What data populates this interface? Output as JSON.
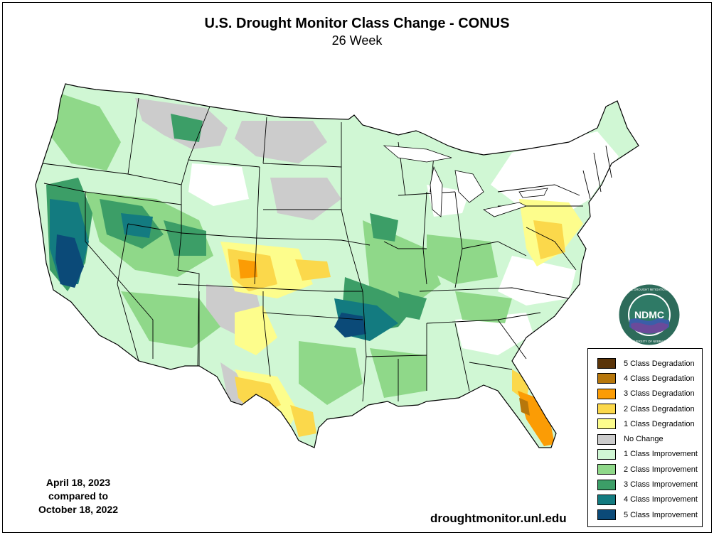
{
  "header": {
    "title": "U.S. Drought Monitor Class Change - CONUS",
    "subtitle": "26 Week"
  },
  "dates": {
    "line1": "April 18, 2023",
    "line2": "compared to",
    "line3": "October 18, 2022"
  },
  "footer": {
    "website": "droughtmonitor.unl.edu"
  },
  "logo": {
    "abbreviation": "NDMC",
    "ring_text_top": "NATIONAL DROUGHT MITIGATION CENTER",
    "ring_text_bottom": "UNIVERSITY OF NEBRASKA"
  },
  "legend": {
    "items": [
      {
        "label": "5 Class Degradation",
        "color": "#5a3408"
      },
      {
        "label": "4 Class Degradation",
        "color": "#b7770b"
      },
      {
        "label": "3 Class Degradation",
        "color": "#fb9c05"
      },
      {
        "label": "2 Class Degradation",
        "color": "#fbd84b"
      },
      {
        "label": "1 Class Degradation",
        "color": "#fdfd8c"
      },
      {
        "label": "No Change",
        "color": "#cccccc"
      },
      {
        "label": "1 Class Improvement",
        "color": "#d0f7d4"
      },
      {
        "label": "2 Class Improvement",
        "color": "#8fd889"
      },
      {
        "label": "3 Class Improvement",
        "color": "#3c9e67"
      },
      {
        "label": "4 Class Improvement",
        "color": "#137b80"
      },
      {
        "label": "5 Class Improvement",
        "color": "#0b4a78"
      }
    ]
  }
}
